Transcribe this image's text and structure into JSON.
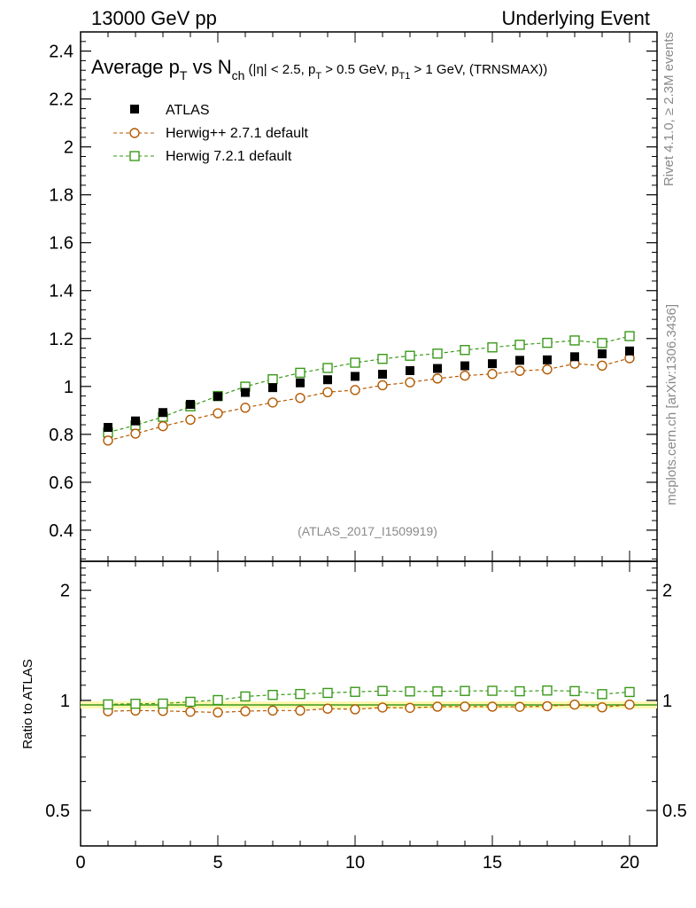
{
  "header": {
    "left": "13000 GeV pp",
    "right": "Underlying Event"
  },
  "title": {
    "main1": "Average p",
    "sub1": "T",
    "main2": " vs N",
    "sub2": "ch",
    "cond_a": " (|η| < 2.5, p",
    "cond_sub_a": "T",
    "cond_b": " > 0.5 GeV, p",
    "cond_sub_b": "T1",
    "cond_c": " > 1 GeV, (TRNSMAX))"
  },
  "side_labels": {
    "rivet": "Rivet 4.1.0, ≥ 2.3M events",
    "mcplots": "mcplots.cern.ch [arXiv:1306.3436]"
  },
  "watermark": "(ATLAS_2017_I1509919)",
  "colors": {
    "atlas": "#000000",
    "herwigpp": "#b35900",
    "herwig7": "#3a9a1a",
    "band": "#fff7b0",
    "refline": "#3a9a1a"
  },
  "chart_data": [
    {
      "type": "scatter",
      "panel": "main",
      "title": "Average pT vs Nch (|η| < 2.5, pT > 0.5 GeV, pT1 > 1 GeV, (TRNSMAX))",
      "xlabel": "",
      "ylabel": "",
      "xlim": [
        0,
        21
      ],
      "ylim": [
        0.27,
        2.48
      ],
      "x_ticks": [
        0,
        5,
        10,
        15,
        20
      ],
      "x_tick_labels": [
        "0",
        "5",
        "10",
        "15",
        "20"
      ],
      "y_ticks": [
        0.4,
        0.6,
        0.8,
        1.0,
        1.2,
        1.4,
        1.6,
        1.8,
        2.0,
        2.2,
        2.4
      ],
      "y_tick_labels": [
        "0.4",
        "0.6",
        "0.8",
        "1",
        "1.2",
        "1.4",
        "1.6",
        "1.8",
        "2",
        "2.2",
        "2.4"
      ],
      "legend_position": "top-left",
      "x": [
        1,
        2,
        3,
        4,
        5,
        6,
        7,
        8,
        9,
        10,
        11,
        12,
        13,
        14,
        15,
        16,
        17,
        18,
        19,
        20
      ],
      "series": [
        {
          "name": "ATLAS",
          "style": "marker",
          "values": [
            0.829,
            0.856,
            0.891,
            0.925,
            0.958,
            0.975,
            0.995,
            1.015,
            1.028,
            1.042,
            1.051,
            1.066,
            1.075,
            1.086,
            1.095,
            1.109,
            1.111,
            1.124,
            1.136,
            1.148
          ]
        },
        {
          "name": "Herwig++ 2.7.1 default",
          "style": "circle-dashed",
          "values": [
            0.774,
            0.803,
            0.834,
            0.861,
            0.888,
            0.911,
            0.933,
            0.952,
            0.976,
            0.985,
            1.005,
            1.017,
            1.033,
            1.045,
            1.052,
            1.065,
            1.071,
            1.095,
            1.087,
            1.118
          ]
        },
        {
          "name": "Herwig 7.2.1 default",
          "style": "square-dashed",
          "values": [
            0.808,
            0.838,
            0.873,
            0.917,
            0.96,
            0.999,
            1.03,
            1.057,
            1.077,
            1.099,
            1.115,
            1.128,
            1.137,
            1.152,
            1.163,
            1.174,
            1.182,
            1.192,
            1.181,
            1.21
          ]
        }
      ]
    },
    {
      "type": "line",
      "panel": "ratio",
      "xlabel": "",
      "ylabel": "Ratio to ATLAS",
      "xlim": [
        0,
        21
      ],
      "ylim": [
        0.4,
        2.4
      ],
      "yscale": "log",
      "x_ticks": [
        0,
        5,
        10,
        15,
        20
      ],
      "x_tick_labels": [
        "0",
        "5",
        "10",
        "15",
        "20"
      ],
      "y_ticks": [
        0.5,
        1,
        2
      ],
      "y_tick_labels": [
        "0.5",
        "1",
        "2"
      ],
      "x": [
        1,
        2,
        3,
        4,
        5,
        6,
        7,
        8,
        9,
        10,
        11,
        12,
        13,
        14,
        15,
        16,
        17,
        18,
        19,
        20
      ],
      "series": [
        {
          "name": "Herwig++ 2.7.1 default",
          "style": "circle-dashed",
          "values": [
            0.934,
            0.938,
            0.936,
            0.931,
            0.927,
            0.934,
            0.938,
            0.938,
            0.949,
            0.945,
            0.956,
            0.954,
            0.961,
            0.962,
            0.961,
            0.96,
            0.964,
            0.974,
            0.957,
            0.974
          ]
        },
        {
          "name": "Herwig 7.2.1 default",
          "style": "square-dashed",
          "values": [
            0.975,
            0.979,
            0.98,
            0.991,
            1.002,
            1.025,
            1.035,
            1.041,
            1.048,
            1.055,
            1.061,
            1.058,
            1.058,
            1.061,
            1.062,
            1.059,
            1.064,
            1.06,
            1.04,
            1.054
          ]
        }
      ]
    }
  ]
}
